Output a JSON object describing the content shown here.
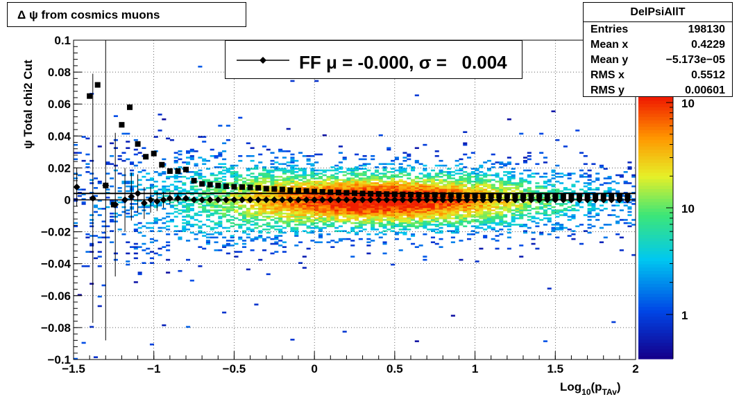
{
  "title_box": {
    "symbol": "Δ ψ",
    "text": "from cosmics muons"
  },
  "stats": {
    "name": "DelPsiAllT",
    "rows": [
      {
        "label": "Entries",
        "value": "198130"
      },
      {
        "label": "Mean x",
        "value": "0.4229"
      },
      {
        "label": "Mean y",
        "value": "−5.173e−05"
      },
      {
        "label": "RMS x",
        "value": "0.5512"
      },
      {
        "label": "RMS y",
        "value": "0.00601"
      }
    ]
  },
  "legend": {
    "text": "FF μ = -0.000, σ =   0.004"
  },
  "colorbar": {
    "tick_labels": [
      "1",
      "10",
      "10"
    ],
    "scale": "log"
  },
  "chart_data": {
    "type": "heatmap",
    "title": "",
    "xlabel": "Log",
    "xlabel_sub": "10",
    "xlabel_arg": "(p",
    "xlabel_arg_sub": "TAv",
    "xlabel_close": ")",
    "ylabel": "ψ  Total chi2 Cut",
    "xlim": [
      -1.5,
      2
    ],
    "ylim": [
      -0.1,
      0.1
    ],
    "grid": true,
    "z_scale": "log",
    "x_ticks": [
      "−1.5",
      "−1",
      "−0.5",
      "0",
      "0.5",
      "1",
      "1.5",
      "2"
    ],
    "x_tick_values": [
      -1.5,
      -1,
      -0.5,
      0,
      0.5,
      1,
      1.5,
      2
    ],
    "y_ticks": [
      "−0.1",
      "−0.08",
      "−0.06",
      "−0.04",
      "−0.02",
      "0",
      "0.02",
      "0.04",
      "0.06",
      "0.08",
      "0.1"
    ],
    "y_tick_values": [
      -0.1,
      -0.08,
      -0.06,
      -0.04,
      -0.02,
      0,
      0.02,
      0.04,
      0.06,
      0.08,
      0.1
    ],
    "series": [
      {
        "marker": "square",
        "x": [
          -1.4,
          -1.35,
          -1.3,
          -1.25,
          -1.2,
          -1.15,
          -1.1,
          -1.05,
          -1.0,
          -0.95,
          -0.9,
          -0.85,
          -0.8,
          -0.75,
          -0.7,
          -0.65,
          -0.6,
          -0.55,
          -0.5,
          -0.45,
          -0.4,
          -0.35,
          -0.3,
          -0.25,
          -0.2,
          -0.15,
          -0.1,
          -0.05,
          0.0,
          0.05,
          0.1,
          0.15,
          0.2,
          0.25,
          0.3,
          0.35,
          0.4,
          0.45,
          0.5,
          0.55,
          0.6,
          0.65,
          0.7,
          0.75,
          0.8,
          0.85,
          0.9,
          0.95,
          1.0,
          1.05,
          1.1,
          1.15,
          1.2,
          1.25,
          1.3,
          1.35,
          1.4,
          1.45,
          1.5,
          1.55,
          1.6,
          1.65,
          1.7,
          1.75,
          1.8,
          1.85,
          1.9,
          1.95
        ],
        "y": [
          0.065,
          0.072,
          0.009,
          -0.003,
          0.047,
          0.058,
          0.035,
          0.027,
          0.029,
          0.022,
          0.018,
          0.018,
          0.019,
          0.012,
          0.01,
          0.0095,
          0.009,
          0.0085,
          0.0082,
          0.008,
          0.0078,
          0.0075,
          0.007,
          0.0068,
          0.0065,
          0.006,
          0.0058,
          0.0055,
          0.0052,
          0.005,
          0.0048,
          0.0046,
          0.0044,
          0.0042,
          0.004,
          0.0038,
          0.0037,
          0.0036,
          0.0035,
          0.0034,
          0.0033,
          0.0032,
          0.0031,
          0.0031,
          0.003,
          0.003,
          0.0029,
          0.0029,
          0.0028,
          0.0028,
          0.0027,
          0.0027,
          0.0026,
          0.0026,
          0.0025,
          0.0025,
          0.0025,
          0.0024,
          0.0024,
          0.0024,
          0.0023,
          0.0023,
          0.0023,
          0.0022,
          0.0022,
          0.0022,
          0.0022,
          0.0021
        ]
      },
      {
        "name": "FF",
        "marker": "diamond",
        "x": [
          -1.48,
          -1.38,
          -1.3,
          -1.24,
          -1.18,
          -1.14,
          -1.1,
          -1.06,
          -1.02,
          -0.98,
          -0.94,
          -0.9,
          -0.85,
          -0.8,
          -0.75,
          -0.7,
          -0.65,
          -0.6,
          -0.55,
          -0.5,
          -0.45,
          -0.4,
          -0.35,
          -0.3,
          -0.25,
          -0.2,
          -0.15,
          -0.1,
          -0.05,
          0.0,
          0.05,
          0.1,
          0.15,
          0.2,
          0.25,
          0.3,
          0.35,
          0.4,
          0.45,
          0.5,
          0.55,
          0.6,
          0.65,
          0.7,
          0.75,
          0.8,
          0.85,
          0.9,
          0.95,
          1.0,
          1.05,
          1.1,
          1.15,
          1.2,
          1.25,
          1.3,
          1.35,
          1.4,
          1.45,
          1.5,
          1.55,
          1.6,
          1.65,
          1.7,
          1.75,
          1.8,
          1.85,
          1.9,
          1.95
        ],
        "y": [
          0.008,
          0.001,
          0.009,
          -0.003,
          0.0,
          0.002,
          0.004,
          -0.002,
          0.0,
          -0.001,
          0.0,
          0.001,
          0.001,
          0.001,
          0.0,
          0.0,
          0.0,
          0.0,
          0.0,
          0.0,
          0.0,
          0.0,
          0.0,
          0.0,
          0.0,
          0.0,
          0.0,
          0.0,
          0.0,
          0.0,
          0.0,
          0.0,
          0.0,
          0.0,
          0.0,
          0.0,
          0.0,
          0.0,
          0.0,
          0.0,
          0.0,
          0.0,
          0.0,
          0.0,
          0.0,
          0.0,
          0.0,
          0.0,
          0.0,
          0.0,
          0.0,
          0.0,
          0.0,
          0.0,
          0.0,
          0.0,
          0.0,
          0.0,
          0.0,
          0.0,
          0.0,
          0.0,
          0.0,
          0.0,
          0.0,
          0.0,
          0.0,
          0.0,
          0.0
        ],
        "err": [
          0.012,
          0.078,
          0.097,
          0.045,
          0.02,
          0.015,
          0.012,
          0.01,
          0.008,
          0.006,
          0.005,
          0.004,
          0.003,
          0.002,
          0.002,
          0.0015,
          0.0012,
          0.001,
          0.001,
          0.001,
          0.001,
          0.001,
          0.001,
          0.001,
          0.001,
          0.001,
          0.001,
          0.001,
          0.001,
          0.001,
          0.001,
          0.001,
          0.001,
          0.001,
          0.001,
          0.001,
          0.001,
          0.001,
          0.001,
          0.001,
          0.001,
          0.001,
          0.001,
          0.001,
          0.001,
          0.001,
          0.001,
          0.001,
          0.001,
          0.001,
          0.001,
          0.001,
          0.001,
          0.001,
          0.001,
          0.001,
          0.001,
          0.001,
          0.001,
          0.001,
          0.001,
          0.001,
          0.001,
          0.001,
          0.001,
          0.001,
          0.001,
          0.001,
          0.001
        ]
      }
    ],
    "reference_line_y": 0.004
  }
}
